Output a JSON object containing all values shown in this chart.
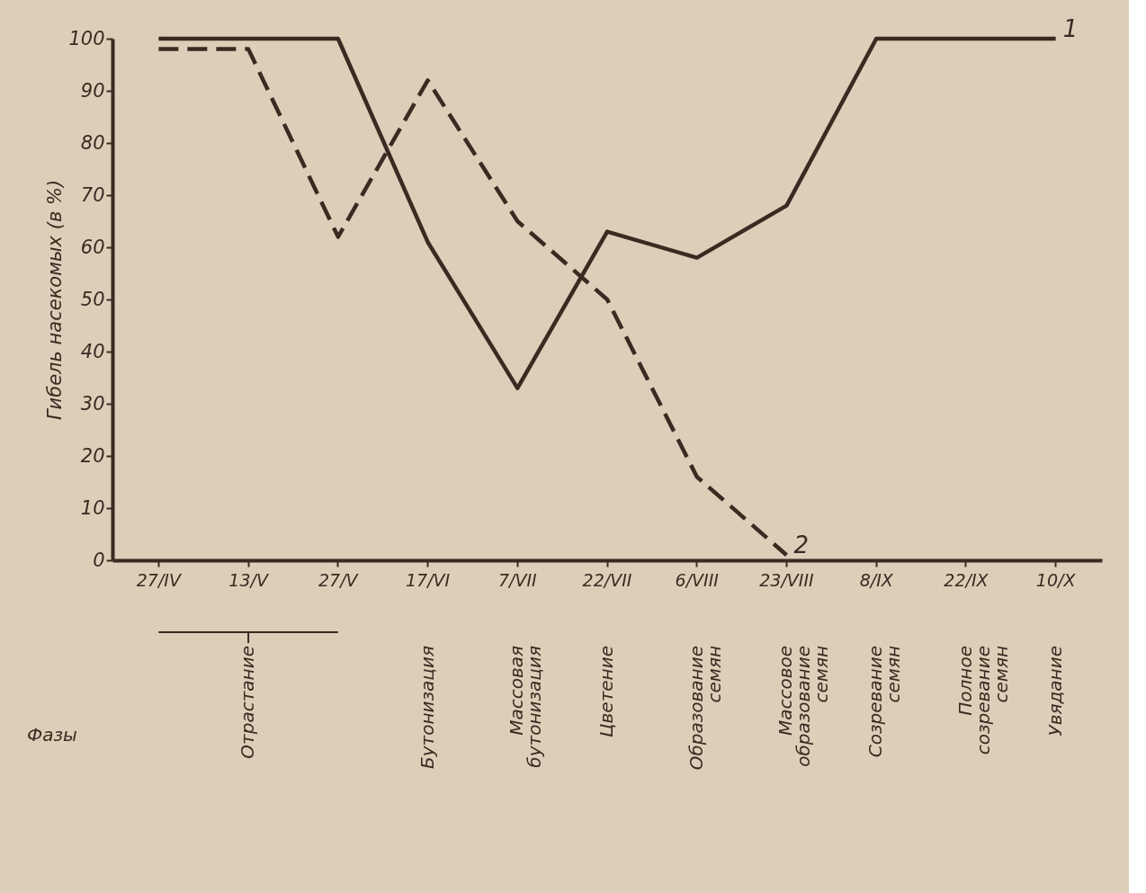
{
  "chart_data": {
    "type": "line",
    "ylabel": "Гибель насекомых (в %)",
    "categories": [
      "27/IV",
      "13/V",
      "27/V",
      "17/VI",
      "7/VII",
      "22/VII",
      "6/VIII",
      "23/VIII",
      "8/IX",
      "22/IX",
      "10/X"
    ],
    "series": [
      {
        "name": "1",
        "color": "#3a2a22",
        "line_style": "solid",
        "values": [
          100,
          100,
          100,
          61,
          33,
          63,
          58,
          68,
          100,
          100,
          100
        ]
      },
      {
        "name": "2",
        "color": "#3a2a22",
        "line_style": "dashed",
        "values": [
          98,
          98,
          62,
          92,
          65,
          50,
          16,
          1,
          null,
          null,
          null
        ]
      }
    ],
    "ylim": [
      0,
      100
    ],
    "yticks": [
      0,
      10,
      20,
      30,
      40,
      50,
      60,
      70,
      80,
      90,
      100
    ],
    "grid": false,
    "legend": false,
    "marker": "none",
    "annotations": [
      "Фазы",
      "Отрастание",
      "Бутонизация",
      "Массовая бутонизация",
      "Цветение",
      "Образование семян",
      "Массовое образование семян",
      "Созревание семян",
      "Полное созревание семян",
      "Увядание"
    ]
  }
}
